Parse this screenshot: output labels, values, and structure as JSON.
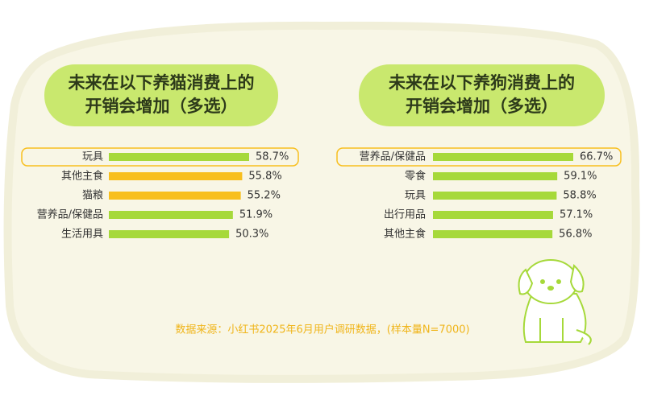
{
  "chart_data": [
    {
      "type": "bar",
      "orientation": "horizontal",
      "title": [
        "未来在以下养猫消费上的",
        "开销会增加（多选）"
      ],
      "categories": [
        "玩具",
        "其他主食",
        "猫粮",
        "营养品/保健品",
        "生活用具"
      ],
      "values": [
        58.7,
        55.8,
        55.2,
        51.9,
        50.3
      ],
      "value_labels": [
        "58.7%",
        "55.8%",
        "55.2%",
        "51.9%",
        "50.3%"
      ],
      "colors": [
        "#a6d93a",
        "#f8bf1e",
        "#f8bf1e",
        "#a6d93a",
        "#a6d93a"
      ],
      "highlight": 0
    },
    {
      "type": "bar",
      "orientation": "horizontal",
      "title": [
        "未来在以下养狗消费上的",
        "开销会增加（多选）"
      ],
      "categories": [
        "营养品/保健品",
        "零食",
        "玩具",
        "出行用品",
        "其他主食"
      ],
      "values": [
        66.7,
        59.1,
        58.8,
        57.1,
        56.8
      ],
      "value_labels": [
        "66.7%",
        "59.1%",
        "58.8%",
        "57.1%",
        "56.8%"
      ],
      "colors": [
        "#a6d93a",
        "#a6d93a",
        "#a6d93a",
        "#a6d93a",
        "#a6d93a"
      ],
      "highlight": 0
    }
  ],
  "source": "数据来源：小红书2025年6月用户调研数据，(样本量N=7000)"
}
